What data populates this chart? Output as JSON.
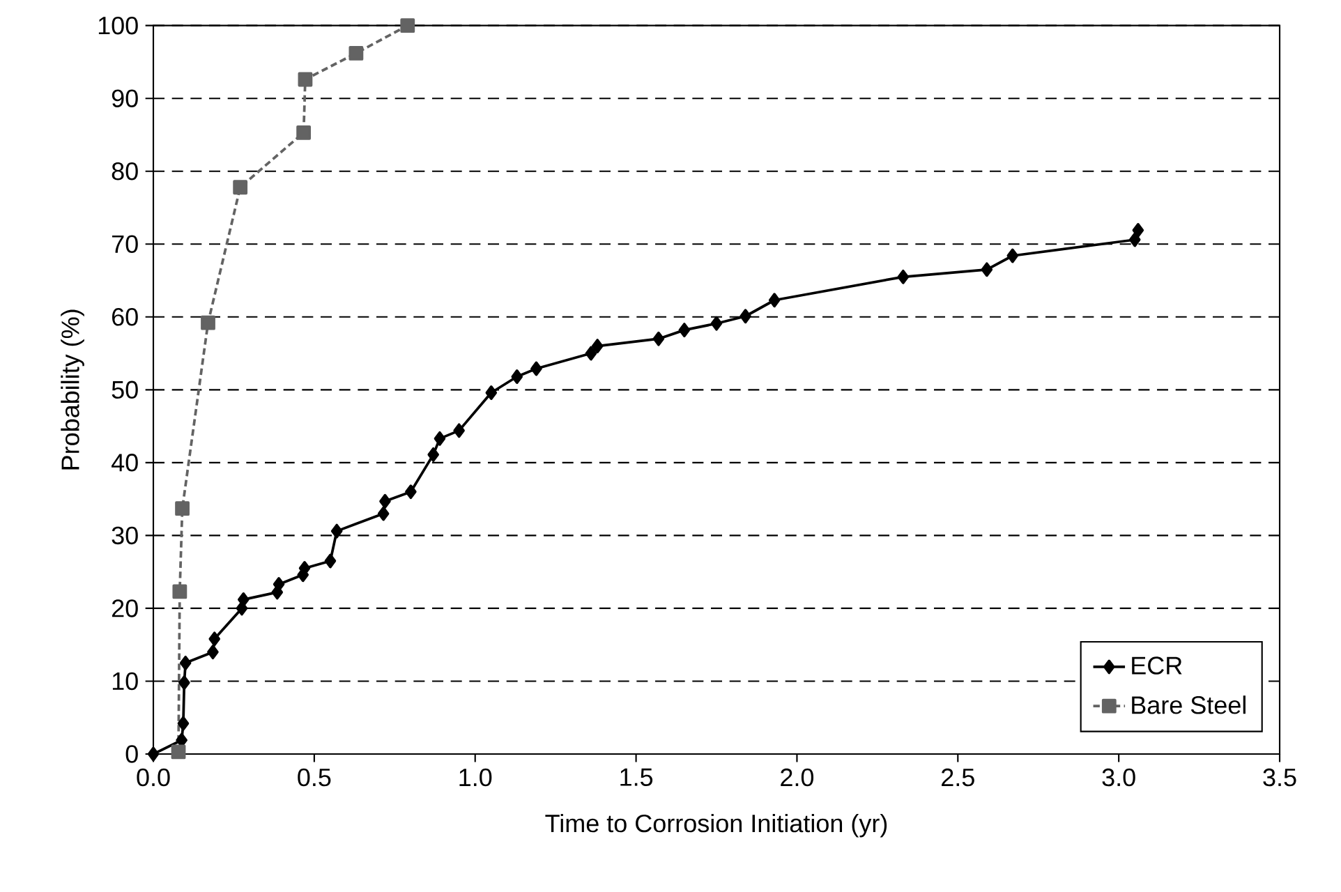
{
  "chart_data": {
    "type": "line",
    "xlabel": "Time to Corrosion Initiation (yr)",
    "ylabel": "Probability (%)",
    "xlim": [
      0,
      3.5
    ],
    "xticks": [
      {
        "value": 0,
        "label": "0.0"
      },
      {
        "value": 0.5,
        "label": "0.5"
      },
      {
        "value": 1,
        "label": "1.0"
      },
      {
        "value": 1.5,
        "label": "1.5"
      },
      {
        "value": 2,
        "label": "2.0"
      },
      {
        "value": 2.5,
        "label": "2.5"
      },
      {
        "value": 3,
        "label": "3.0"
      },
      {
        "value": 3.5,
        "label": "3.5"
      }
    ],
    "ylim": [
      0,
      100
    ],
    "yticks": [
      0,
      10,
      20,
      30,
      40,
      50,
      60,
      70,
      80,
      90,
      100
    ],
    "grid": "y",
    "legend": "bottom right",
    "series": [
      {
        "name": "ECR",
        "color": "#000000",
        "marker": "diamond",
        "line_style": "solid",
        "x": [
          0.0,
          0.088,
          0.093,
          0.096,
          0.1,
          0.185,
          0.19,
          0.275,
          0.28,
          0.385,
          0.39,
          0.465,
          0.47,
          0.55,
          0.57,
          0.715,
          0.72,
          0.8,
          0.87,
          0.89,
          0.95,
          1.05,
          1.13,
          1.19,
          1.36,
          1.38,
          1.57,
          1.65,
          1.75,
          1.84,
          1.93,
          2.33,
          2.59,
          2.67,
          3.05,
          3.06
        ],
        "values": [
          0.0,
          1.9,
          4.2,
          9.8,
          12.5,
          14.0,
          15.8,
          20.0,
          21.2,
          22.2,
          23.3,
          24.6,
          25.5,
          26.5,
          30.6,
          33.0,
          34.7,
          36.0,
          41.1,
          43.3,
          44.4,
          49.6,
          51.8,
          52.9,
          55.0,
          56.0,
          57.0,
          58.2,
          59.1,
          60.1,
          62.3,
          65.5,
          66.5,
          68.4,
          70.6,
          71.9
        ]
      },
      {
        "name": "Bare Steel",
        "color": "#636363",
        "marker": "square",
        "line_style": "dashed",
        "x": [
          0.078,
          0.082,
          0.09,
          0.17,
          0.27,
          0.467,
          0.472,
          0.63,
          0.79
        ],
        "values": [
          0.3,
          22.3,
          33.7,
          59.2,
          77.8,
          85.3,
          92.6,
          96.2,
          100.0
        ]
      }
    ]
  }
}
